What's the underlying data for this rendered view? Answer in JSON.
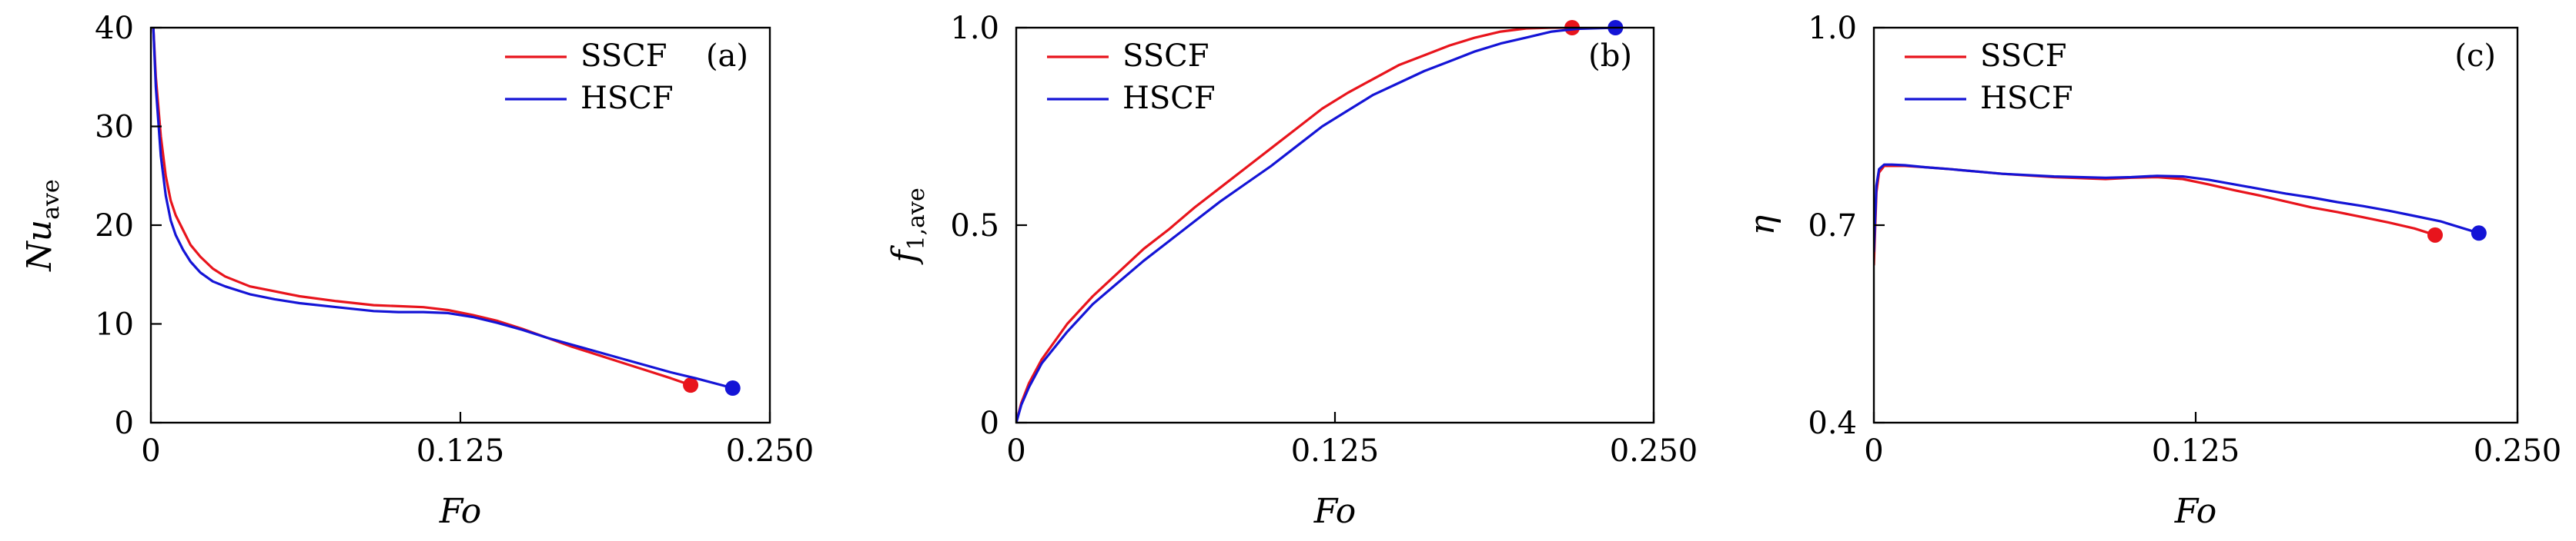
{
  "colors": {
    "SSCF": "#e8141c",
    "HSCF": "#1414d6",
    "axis": "#000000"
  },
  "chart_data": [
    {
      "type": "line",
      "panel_label": "(a)",
      "xlabel": "Fo",
      "ylabel_main": "Nu",
      "ylabel_sub": "ave",
      "xlim": [
        0,
        0.25
      ],
      "ylim": [
        0,
        40
      ],
      "xticks": [
        "0",
        "0.125",
        "0.250"
      ],
      "xtick_values": [
        0,
        0.125,
        0.25
      ],
      "yticks": [
        "0",
        "10",
        "20",
        "30",
        "40"
      ],
      "ytick_values": [
        0,
        10,
        20,
        30,
        40
      ],
      "legend": [
        "SSCF",
        "HSCF"
      ],
      "legend_position": "top-right",
      "series": [
        {
          "name": "SSCF",
          "x": [
            0.001,
            0.002,
            0.004,
            0.006,
            0.008,
            0.01,
            0.013,
            0.016,
            0.02,
            0.025,
            0.03,
            0.04,
            0.05,
            0.06,
            0.075,
            0.09,
            0.1,
            0.11,
            0.12,
            0.13,
            0.14,
            0.15,
            0.16,
            0.17,
            0.18,
            0.19,
            0.2,
            0.21,
            0.218
          ],
          "y": [
            40,
            35,
            29,
            25,
            22.5,
            21,
            19.5,
            18,
            16.8,
            15.6,
            14.8,
            13.8,
            13.3,
            12.8,
            12.3,
            11.9,
            11.8,
            11.7,
            11.4,
            10.9,
            10.3,
            9.5,
            8.6,
            7.7,
            6.9,
            6.1,
            5.3,
            4.5,
            3.8
          ],
          "end_marker": {
            "x": 0.218,
            "y": 3.8
          }
        },
        {
          "name": "HSCF",
          "x": [
            0.001,
            0.002,
            0.004,
            0.006,
            0.008,
            0.01,
            0.013,
            0.016,
            0.02,
            0.025,
            0.03,
            0.04,
            0.05,
            0.06,
            0.075,
            0.09,
            0.1,
            0.11,
            0.12,
            0.13,
            0.14,
            0.15,
            0.16,
            0.17,
            0.18,
            0.19,
            0.2,
            0.21,
            0.22,
            0.235
          ],
          "y": [
            40,
            34,
            27,
            23,
            20.5,
            19,
            17.5,
            16.3,
            15.2,
            14.3,
            13.8,
            13.0,
            12.5,
            12.1,
            11.7,
            11.3,
            11.2,
            11.2,
            11.1,
            10.7,
            10.1,
            9.4,
            8.6,
            7.9,
            7.2,
            6.5,
            5.8,
            5.1,
            4.5,
            3.5
          ],
          "end_marker": {
            "x": 0.235,
            "y": 3.5
          }
        }
      ]
    },
    {
      "type": "line",
      "panel_label": "(b)",
      "xlabel": "Fo",
      "ylabel_main": "f",
      "ylabel_sub": "1,ave",
      "xlim": [
        0,
        0.25
      ],
      "ylim": [
        0,
        1.0
      ],
      "xticks": [
        "0",
        "0.125",
        "0.250"
      ],
      "xtick_values": [
        0,
        0.125,
        0.25
      ],
      "yticks": [
        "0",
        "0.5",
        "1.0"
      ],
      "ytick_values": [
        0,
        0.5,
        1.0
      ],
      "legend": [
        "SSCF",
        "HSCF"
      ],
      "legend_position": "top-left",
      "series": [
        {
          "name": "SSCF",
          "x": [
            0,
            0.002,
            0.005,
            0.01,
            0.02,
            0.03,
            0.04,
            0.05,
            0.06,
            0.07,
            0.08,
            0.09,
            0.1,
            0.11,
            0.12,
            0.13,
            0.14,
            0.15,
            0.16,
            0.17,
            0.18,
            0.19,
            0.2,
            0.21,
            0.218
          ],
          "y": [
            0,
            0.05,
            0.1,
            0.16,
            0.25,
            0.32,
            0.38,
            0.44,
            0.49,
            0.545,
            0.595,
            0.645,
            0.695,
            0.745,
            0.795,
            0.835,
            0.87,
            0.905,
            0.93,
            0.955,
            0.975,
            0.99,
            0.998,
            1.0,
            1.0
          ],
          "end_marker": {
            "x": 0.218,
            "y": 1.0
          }
        },
        {
          "name": "HSCF",
          "x": [
            0,
            0.002,
            0.005,
            0.01,
            0.02,
            0.03,
            0.04,
            0.05,
            0.06,
            0.07,
            0.08,
            0.09,
            0.1,
            0.11,
            0.12,
            0.13,
            0.14,
            0.15,
            0.16,
            0.17,
            0.18,
            0.19,
            0.2,
            0.21,
            0.22,
            0.235
          ],
          "y": [
            0,
            0.045,
            0.09,
            0.15,
            0.23,
            0.3,
            0.355,
            0.41,
            0.46,
            0.51,
            0.56,
            0.605,
            0.65,
            0.7,
            0.75,
            0.79,
            0.83,
            0.86,
            0.89,
            0.915,
            0.94,
            0.96,
            0.975,
            0.99,
            0.997,
            1.0
          ],
          "end_marker": {
            "x": 0.235,
            "y": 1.0
          }
        }
      ]
    },
    {
      "type": "line",
      "panel_label": "(c)",
      "xlabel": "Fo",
      "ylabel_main": "η",
      "ylabel_sub": "",
      "xlim": [
        0,
        0.25
      ],
      "ylim": [
        0.4,
        1.0
      ],
      "xticks": [
        "0",
        "0.125",
        "0.250"
      ],
      "xtick_values": [
        0,
        0.125,
        0.25
      ],
      "yticks": [
        "0.4",
        "0.7",
        "1.0"
      ],
      "ytick_values": [
        0.4,
        0.7,
        1.0
      ],
      "legend": [
        "SSCF",
        "HSCF"
      ],
      "legend_position": "top-left",
      "series": [
        {
          "name": "SSCF",
          "x": [
            0,
            0.001,
            0.002,
            0.004,
            0.007,
            0.012,
            0.02,
            0.03,
            0.05,
            0.07,
            0.09,
            0.1,
            0.11,
            0.12,
            0.13,
            0.14,
            0.15,
            0.16,
            0.17,
            0.18,
            0.19,
            0.2,
            0.21,
            0.218
          ],
          "y": [
            0.64,
            0.75,
            0.78,
            0.79,
            0.79,
            0.79,
            0.788,
            0.785,
            0.778,
            0.773,
            0.77,
            0.772,
            0.773,
            0.77,
            0.762,
            0.753,
            0.745,
            0.736,
            0.727,
            0.72,
            0.712,
            0.704,
            0.695,
            0.685
          ],
          "end_marker": {
            "x": 0.218,
            "y": 0.685
          }
        },
        {
          "name": "HSCF",
          "x": [
            0,
            0.001,
            0.002,
            0.004,
            0.007,
            0.012,
            0.02,
            0.03,
            0.05,
            0.07,
            0.09,
            0.1,
            0.11,
            0.12,
            0.13,
            0.14,
            0.15,
            0.16,
            0.17,
            0.18,
            0.19,
            0.2,
            0.21,
            0.22,
            0.235
          ],
          "y": [
            0.66,
            0.76,
            0.785,
            0.792,
            0.792,
            0.791,
            0.788,
            0.785,
            0.778,
            0.774,
            0.772,
            0.773,
            0.775,
            0.774,
            0.769,
            0.762,
            0.755,
            0.748,
            0.742,
            0.735,
            0.729,
            0.722,
            0.714,
            0.706,
            0.688
          ],
          "end_marker": {
            "x": 0.235,
            "y": 0.688
          }
        }
      ]
    }
  ]
}
